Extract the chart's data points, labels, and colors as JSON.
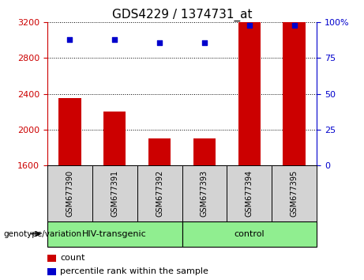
{
  "title": "GDS4229 / 1374731_at",
  "samples": [
    "GSM677390",
    "GSM677391",
    "GSM677392",
    "GSM677393",
    "GSM677394",
    "GSM677395"
  ],
  "counts": [
    2350,
    2200,
    1900,
    1900,
    3200,
    3200
  ],
  "percentiles": [
    88,
    88,
    86,
    86,
    98,
    98
  ],
  "ylim_left": [
    1600,
    3200
  ],
  "ylim_right": [
    0,
    100
  ],
  "yticks_left": [
    1600,
    2000,
    2400,
    2800,
    3200
  ],
  "yticks_right": [
    0,
    25,
    50,
    75,
    100
  ],
  "ytick_labels_right": [
    "0",
    "25",
    "50",
    "75",
    "100%"
  ],
  "bar_color": "#cc0000",
  "dot_color": "#0000cc",
  "bar_width": 0.5,
  "groups": [
    {
      "label": "HIV-transgenic",
      "span": [
        0,
        3
      ],
      "color": "#90ee90"
    },
    {
      "label": "control",
      "span": [
        3,
        6
      ],
      "color": "#90ee90"
    }
  ],
  "group_label": "genotype/variation",
  "legend_items": [
    {
      "label": "count",
      "color": "#cc0000"
    },
    {
      "label": "percentile rank within the sample",
      "color": "#0000cc"
    }
  ],
  "grid_color": "black",
  "background_xticklabel": "#d3d3d3",
  "left_yaxis_color": "#cc0000",
  "right_yaxis_color": "#0000cc",
  "title_fontsize": 11
}
